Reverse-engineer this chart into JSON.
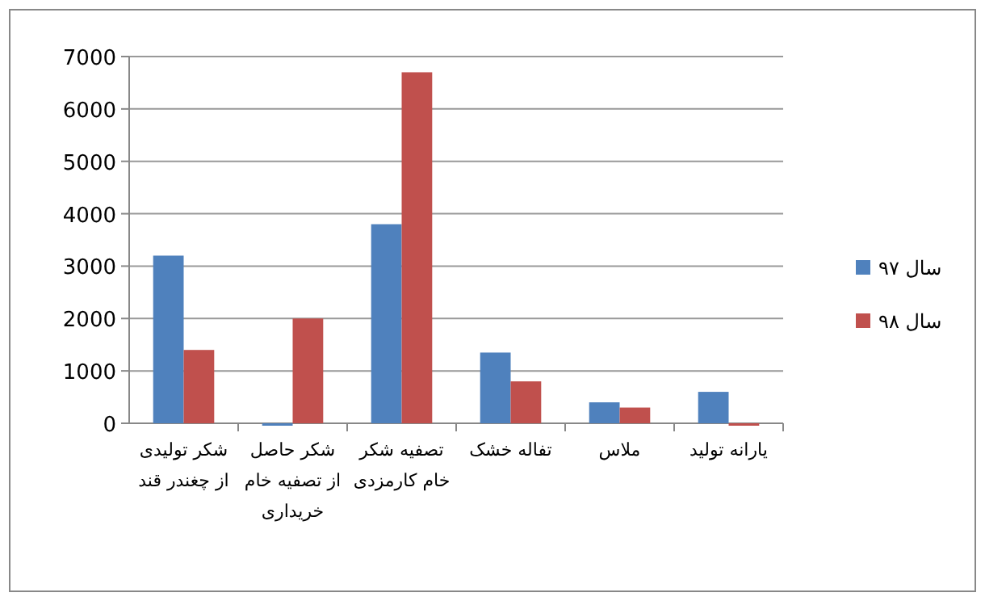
{
  "chart_data": {
    "type": "bar",
    "categories": [
      "شکر تولیدی از چغندر قند",
      "شکر حاصل از تصفیه خام خریداری",
      "تصفیه شکر خام کارمزدی",
      "تفاله خشک",
      "ملاس",
      "یارانه تولید"
    ],
    "series": [
      {
        "name": "سال ۹۷",
        "color": "#4f81bd",
        "values": [
          3200,
          0,
          3800,
          1350,
          400,
          600
        ]
      },
      {
        "name": "سال ۹۸",
        "color": "#c0504d",
        "values": [
          1400,
          2000,
          6700,
          800,
          300,
          0
        ]
      }
    ],
    "ylim": [
      0,
      7000
    ],
    "yticks": [
      0,
      1000,
      2000,
      3000,
      4000,
      5000,
      6000,
      7000
    ],
    "grid": "y",
    "legend": "right"
  }
}
